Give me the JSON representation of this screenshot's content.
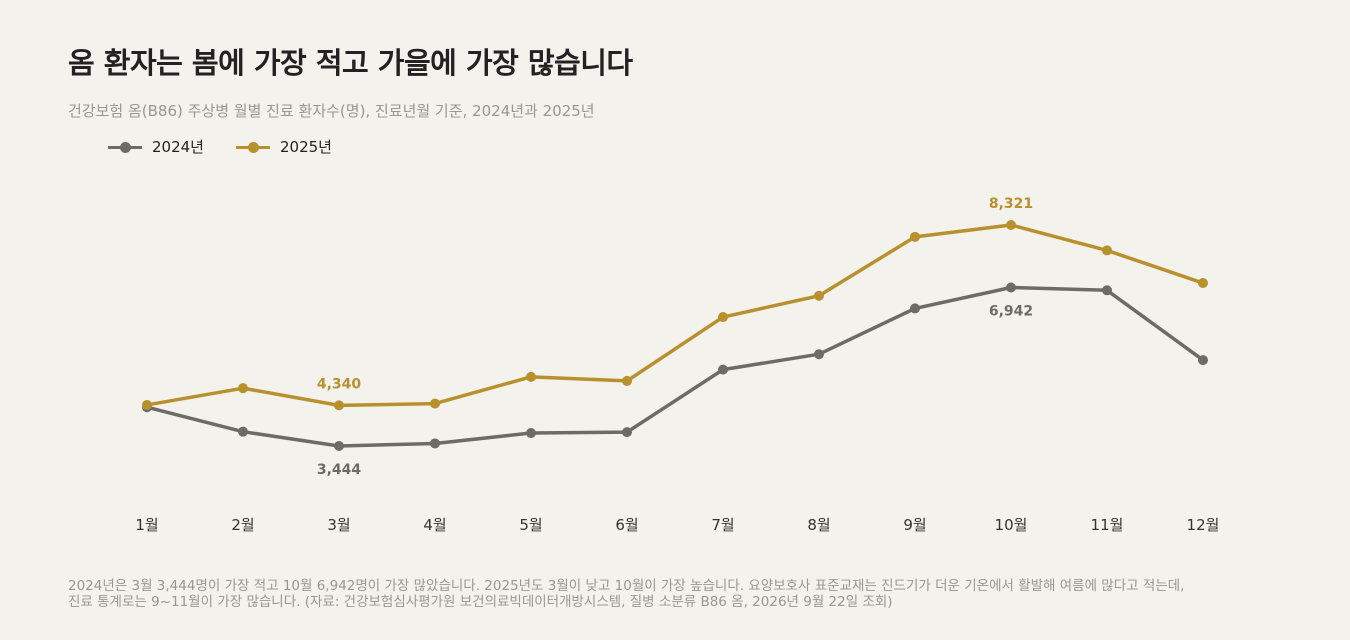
{
  "title": "옴 환자는 봄에 가장 적고 가을에 가장 많습니다",
  "subtitle": "건강보험 옴(B86) 주상병 월별 진료 환자수(명), 진료년월 기준, 2024년과 2025년",
  "colors": {
    "series_2024": "#6e6b66",
    "series_2025": "#b8912e",
    "background": "#f4f2ed"
  },
  "chart_data": {
    "type": "line",
    "categories": [
      "1월",
      "2월",
      "3월",
      "4월",
      "5월",
      "6월",
      "7월",
      "8월",
      "9월",
      "10월",
      "11월",
      "12월"
    ],
    "series": [
      {
        "name": "2024년",
        "values": [
          4300,
          3760,
          3444,
          3500,
          3730,
          3750,
          5130,
          5470,
          6480,
          6942,
          6880,
          5340
        ]
      },
      {
        "name": "2025년",
        "values": [
          4350,
          4720,
          4340,
          4380,
          4970,
          4880,
          6290,
          6760,
          8060,
          8321,
          7760,
          7040
        ]
      }
    ],
    "annotations": [
      {
        "series": 0,
        "index": 2,
        "label": "3,444"
      },
      {
        "series": 0,
        "index": 9,
        "label": "6,942"
      },
      {
        "series": 1,
        "index": 2,
        "label": "4,340"
      },
      {
        "series": 1,
        "index": 9,
        "label": "8,321"
      }
    ],
    "ylim": [
      0,
      9500
    ],
    "legend_position": "top-left",
    "grid": false
  },
  "footnote": {
    "line1": "2024년은 3월 3,444명이 가장 적고 10월 6,942명이 가장 많았습니다. 2025년도 3월이 낮고 10월이 가장 높습니다. 요양보호사 표준교재는 진드기가 더운 기온에서 활발해 여름에 많다고 적는데,",
    "line2": "진료 통계로는 9~11월이 가장 많습니다. (자료: 건강보험심사평가원 보건의료빅데이터개방시스템, 질병 소분류 B86 옴, 2026년 9월 22일 조회)"
  }
}
